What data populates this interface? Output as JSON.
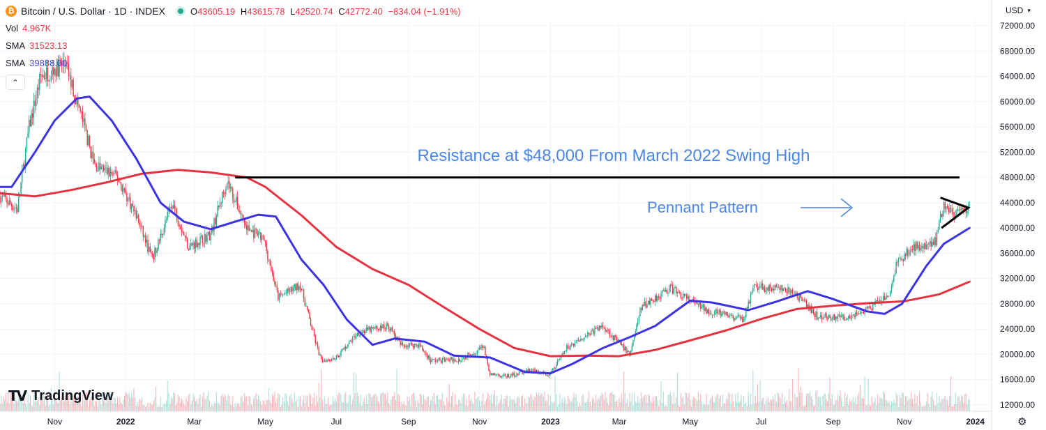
{
  "header": {
    "symbol_title": "Bitcoin / U.S. Dollar · 1D · INDEX",
    "logo_glyph": "₿",
    "ohlc": [
      {
        "key": "O",
        "value": "43605.19"
      },
      {
        "key": "H",
        "value": "43615.78"
      },
      {
        "key": "L",
        "value": "42520.74"
      },
      {
        "key": "C",
        "value": "42772.40"
      },
      {
        "key": "",
        "value": "−834.04 (−1.91%)"
      }
    ]
  },
  "indicators": [
    {
      "label": "Vol",
      "value": "4.967K",
      "color": "#f23645"
    },
    {
      "label": "SMA",
      "value": "31523.13",
      "color": "#f23645"
    },
    {
      "label": "SMA",
      "value": "39888.00",
      "color": "#4a3fe0"
    }
  ],
  "currency": "USD",
  "branding": "TradingView",
  "colors": {
    "up": "#22ab94",
    "down": "#f23645",
    "sma_200": "#e8313f",
    "sma_50": "#3b32e6",
    "annotation": "#4a86e8"
  },
  "chart_data": {
    "type": "line",
    "y_ticks": [
      12000,
      16000,
      20000,
      24000,
      28000,
      32000,
      36000,
      40000,
      44000,
      48000,
      52000,
      56000,
      60000,
      64000,
      68000,
      72000
    ],
    "ylim": [
      11000,
      73000
    ],
    "x_ticks": [
      "Nov",
      "2022",
      "Mar",
      "May",
      "Jul",
      "Sep",
      "Nov",
      "2023",
      "Mar",
      "May",
      "Jul",
      "Sep",
      "Nov",
      "2024"
    ],
    "x_tick_dates": [
      "2021-11-01",
      "2022-01-01",
      "2022-03-01",
      "2022-05-01",
      "2022-07-01",
      "2022-09-01",
      "2022-11-01",
      "2023-01-01",
      "2023-03-01",
      "2023-05-01",
      "2023-07-01",
      "2023-09-01",
      "2023-11-01",
      "2024-01-01"
    ],
    "xlim": [
      "2021-09-15",
      "2024-01-15"
    ],
    "series": [
      {
        "role": "price",
        "points": [
          [
            "2021-09-15",
            45000
          ],
          [
            "2021-09-30",
            43000
          ],
          [
            "2021-10-10",
            56000
          ],
          [
            "2021-10-20",
            64000
          ],
          [
            "2021-11-10",
            66000
          ],
          [
            "2021-11-25",
            57000
          ],
          [
            "2021-12-05",
            50000
          ],
          [
            "2021-12-25",
            48000
          ],
          [
            "2022-01-10",
            42000
          ],
          [
            "2022-01-24",
            35000
          ],
          [
            "2022-02-10",
            44000
          ],
          [
            "2022-02-24",
            37000
          ],
          [
            "2022-03-15",
            39000
          ],
          [
            "2022-03-29",
            47500
          ],
          [
            "2022-04-15",
            40000
          ],
          [
            "2022-04-30",
            38000
          ],
          [
            "2022-05-12",
            29000
          ],
          [
            "2022-05-31",
            31000
          ],
          [
            "2022-06-13",
            22000
          ],
          [
            "2022-06-18",
            19000
          ],
          [
            "2022-07-01",
            19500
          ],
          [
            "2022-07-20",
            23500
          ],
          [
            "2022-08-15",
            24500
          ],
          [
            "2022-08-25",
            21500
          ],
          [
            "2022-09-10",
            21500
          ],
          [
            "2022-09-20",
            19000
          ],
          [
            "2022-10-15",
            19200
          ],
          [
            "2022-11-05",
            21200
          ],
          [
            "2022-11-09",
            17000
          ],
          [
            "2022-11-25",
            16500
          ],
          [
            "2022-12-15",
            17500
          ],
          [
            "2022-12-31",
            16600
          ],
          [
            "2023-01-15",
            21000
          ],
          [
            "2023-01-31",
            23000
          ],
          [
            "2023-02-15",
            24500
          ],
          [
            "2023-03-10",
            20000
          ],
          [
            "2023-03-20",
            27500
          ],
          [
            "2023-04-14",
            30500
          ],
          [
            "2023-05-01",
            28500
          ],
          [
            "2023-05-15",
            27000
          ],
          [
            "2023-06-15",
            25500
          ],
          [
            "2023-06-25",
            30500
          ],
          [
            "2023-07-15",
            30500
          ],
          [
            "2023-07-31",
            29500
          ],
          [
            "2023-08-18",
            26000
          ],
          [
            "2023-09-10",
            25800
          ],
          [
            "2023-09-30",
            27000
          ],
          [
            "2023-10-20",
            29500
          ],
          [
            "2023-10-25",
            34500
          ],
          [
            "2023-11-10",
            37000
          ],
          [
            "2023-11-28",
            38000
          ],
          [
            "2023-12-05",
            44000
          ],
          [
            "2023-12-15",
            42000
          ],
          [
            "2023-12-27",
            42800
          ]
        ]
      },
      {
        "role": "sma",
        "color": "#e8313f",
        "points": [
          [
            "2021-09-15",
            45500
          ],
          [
            "2021-10-15",
            45000
          ],
          [
            "2021-11-15",
            46000
          ],
          [
            "2021-12-15",
            47200
          ],
          [
            "2022-01-15",
            48600
          ],
          [
            "2022-02-15",
            49200
          ],
          [
            "2022-03-15",
            48800
          ],
          [
            "2022-04-15",
            48000
          ],
          [
            "2022-05-01",
            46500
          ],
          [
            "2022-06-01",
            42000
          ],
          [
            "2022-07-01",
            37000
          ],
          [
            "2022-08-01",
            33500
          ],
          [
            "2022-09-01",
            31000
          ],
          [
            "2022-10-01",
            27500
          ],
          [
            "2022-11-01",
            24000
          ],
          [
            "2022-12-01",
            21000
          ],
          [
            "2023-01-01",
            19700
          ],
          [
            "2023-02-01",
            19800
          ],
          [
            "2023-03-01",
            19700
          ],
          [
            "2023-04-01",
            20700
          ],
          [
            "2023-05-01",
            22200
          ],
          [
            "2023-06-01",
            23800
          ],
          [
            "2023-07-01",
            25600
          ],
          [
            "2023-08-01",
            27200
          ],
          [
            "2023-09-01",
            27700
          ],
          [
            "2023-10-01",
            28100
          ],
          [
            "2023-11-01",
            28400
          ],
          [
            "2023-12-01",
            29500
          ],
          [
            "2023-12-27",
            31500
          ]
        ]
      },
      {
        "role": "sma",
        "color": "#3b32e6",
        "points": [
          [
            "2021-09-15",
            46500
          ],
          [
            "2021-09-25",
            46500
          ],
          [
            "2021-10-15",
            52000
          ],
          [
            "2021-11-01",
            57000
          ],
          [
            "2021-11-20",
            60500
          ],
          [
            "2021-12-01",
            60800
          ],
          [
            "2021-12-20",
            57000
          ],
          [
            "2022-01-10",
            51000
          ],
          [
            "2022-01-31",
            44000
          ],
          [
            "2022-02-20",
            41000
          ],
          [
            "2022-03-15",
            39800
          ],
          [
            "2022-04-05",
            41000
          ],
          [
            "2022-04-25",
            42100
          ],
          [
            "2022-05-10",
            41800
          ],
          [
            "2022-06-01",
            35000
          ],
          [
            "2022-06-20",
            31000
          ],
          [
            "2022-07-10",
            25500
          ],
          [
            "2022-08-01",
            21500
          ],
          [
            "2022-08-20",
            22500
          ],
          [
            "2022-09-15",
            22000
          ],
          [
            "2022-10-10",
            19800
          ],
          [
            "2022-11-10",
            19500
          ],
          [
            "2022-12-10",
            17200
          ],
          [
            "2023-01-01",
            17000
          ],
          [
            "2023-01-20",
            18500
          ],
          [
            "2023-02-15",
            21000
          ],
          [
            "2023-03-10",
            22700
          ],
          [
            "2023-04-01",
            24500
          ],
          [
            "2023-05-01",
            28500
          ],
          [
            "2023-05-20",
            28200
          ],
          [
            "2023-06-20",
            27000
          ],
          [
            "2023-07-15",
            28400
          ],
          [
            "2023-08-10",
            30000
          ],
          [
            "2023-08-31",
            28800
          ],
          [
            "2023-09-30",
            26800
          ],
          [
            "2023-10-15",
            26400
          ],
          [
            "2023-10-30",
            28000
          ],
          [
            "2023-11-20",
            34000
          ],
          [
            "2023-12-05",
            37500
          ],
          [
            "2023-12-27",
            40000
          ]
        ]
      }
    ],
    "annotations": [
      {
        "text": "Resistance at $48,000 From March 2022 Swing High",
        "level": 48000,
        "from": "2022-04-05",
        "to": "2024-01-15"
      },
      {
        "text": "Pennant Pattern"
      }
    ]
  }
}
